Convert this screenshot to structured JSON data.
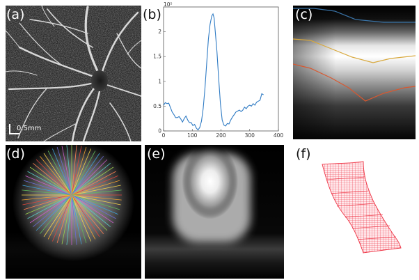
{
  "figure": {
    "panel_labels": {
      "a": "(a)",
      "b": "(b)",
      "c": "(c)",
      "d": "(d)",
      "e": "(e)",
      "f": "(f)"
    },
    "scale_bar": "0.5mm",
    "colors": {
      "line_blue": "#2f7bc4",
      "boundary_top": "#3a74a8",
      "boundary_middle": "#d8a83c",
      "boundary_bottom": "#d9582f",
      "mesh": "#ee3344"
    }
  },
  "chart_data": {
    "type": "line",
    "title": "",
    "xlabel": "",
    "ylabel": "",
    "xlim": [
      0,
      400
    ],
    "ylim": [
      0,
      2.5
    ],
    "x_ticks": [
      "0",
      "100",
      "200",
      "300",
      "400"
    ],
    "y_ticks": [
      "0",
      "0.5",
      "1",
      "1.5",
      "2"
    ],
    "exponent_label": "10⁵",
    "series": [
      {
        "color": "#2f7bc4",
        "x": [
          0,
          6,
          12,
          18,
          24,
          30,
          36,
          42,
          48,
          54,
          60,
          66,
          72,
          78,
          84,
          90,
          96,
          102,
          108,
          114,
          120,
          126,
          132,
          138,
          144,
          150,
          156,
          162,
          168,
          172,
          176,
          180,
          186,
          192,
          198,
          204,
          210,
          216,
          222,
          228,
          234,
          240,
          246,
          252,
          258,
          264,
          270,
          276,
          282,
          288,
          294,
          300,
          306,
          312,
          318,
          324,
          330,
          336,
          342,
          348
        ],
        "y": [
          0.52,
          0.57,
          0.55,
          0.56,
          0.47,
          0.38,
          0.33,
          0.27,
          0.27,
          0.29,
          0.24,
          0.18,
          0.25,
          0.3,
          0.22,
          0.17,
          0.17,
          0.11,
          0.13,
          0.06,
          0.02,
          0.07,
          0.2,
          0.45,
          0.85,
          1.35,
          1.85,
          2.15,
          2.32,
          2.36,
          2.28,
          2.0,
          1.6,
          1.05,
          0.55,
          0.22,
          0.12,
          0.1,
          0.15,
          0.14,
          0.22,
          0.28,
          0.33,
          0.38,
          0.4,
          0.42,
          0.39,
          0.42,
          0.48,
          0.45,
          0.5,
          0.52,
          0.5,
          0.55,
          0.52,
          0.58,
          0.6,
          0.62,
          0.75,
          0.73
        ]
      }
    ],
    "grid": false,
    "legend": "none"
  }
}
